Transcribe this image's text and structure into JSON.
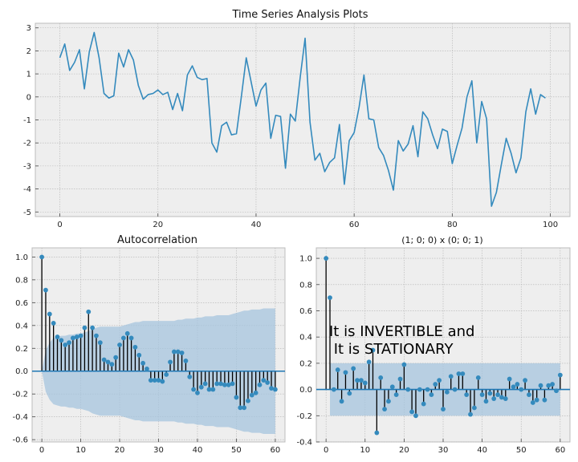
{
  "figure_title": "",
  "chart_data": [
    {
      "type": "line",
      "title": "Time Series Analysis Plots",
      "xlim": [
        -5,
        104
      ],
      "ylim": [
        -5.2,
        3.2
      ],
      "xticks": [
        0,
        20,
        40,
        60,
        80,
        100
      ],
      "yticks": [
        -5,
        -4,
        -3,
        -2,
        -1,
        0,
        1,
        2,
        3
      ],
      "grid": true,
      "color": "#348ABD",
      "series": [
        {
          "values": [
            1.7,
            2.3,
            1.15,
            1.5,
            2.05,
            0.35,
            1.95,
            2.8,
            1.7,
            0.15,
            -0.05,
            0.05,
            1.9,
            1.3,
            2.05,
            1.6,
            0.5,
            -0.1,
            0.1,
            0.15,
            0.3,
            0.1,
            0.2,
            -0.55,
            0.15,
            -0.6,
            0.95,
            1.35,
            0.85,
            0.75,
            0.8,
            -2.0,
            -2.4,
            -1.25,
            -1.1,
            -1.65,
            -1.6,
            0.0,
            1.7,
            0.65,
            -0.4,
            0.3,
            0.6,
            -1.8,
            -0.8,
            -0.85,
            -3.1,
            -0.75,
            -1.05,
            0.85,
            2.55,
            -1.1,
            -2.75,
            -2.45,
            -3.25,
            -2.85,
            -2.65,
            -1.2,
            -3.8,
            -1.9,
            -1.55,
            -0.45,
            0.95,
            -0.95,
            -1.0,
            -2.2,
            -2.55,
            -3.2,
            -4.05,
            -1.9,
            -2.35,
            -2.05,
            -1.25,
            -2.6,
            -0.65,
            -0.95,
            -1.65,
            -2.25,
            -1.4,
            -1.5,
            -2.9,
            -2.1,
            -1.35,
            0.0,
            0.7,
            -2.0,
            -0.2,
            -0.95,
            -4.75,
            -4.15,
            -2.95,
            -1.8,
            -2.45,
            -3.3,
            -2.65,
            -0.65,
            0.35,
            -0.75,
            0.1,
            -0.05
          ]
        }
      ]
    },
    {
      "type": "stem",
      "title": "Autocorrelation",
      "xlim": [
        -2.5,
        62.5
      ],
      "ylim": [
        -0.62,
        1.08
      ],
      "xticks": [
        0,
        10,
        20,
        30,
        40,
        50,
        60
      ],
      "yticks": [
        -0.6,
        -0.4,
        -0.2,
        0.0,
        0.2,
        0.4,
        0.6,
        0.8,
        1.0
      ],
      "grid": true,
      "marker_color": "#348ABD",
      "zero_line_color": "#1f77b4",
      "confidence_band": {
        "color": "#a6c4dd",
        "upper": [
          0.0,
          0.18,
          0.25,
          0.29,
          0.3,
          0.31,
          0.31,
          0.32,
          0.32,
          0.33,
          0.33,
          0.34,
          0.35,
          0.37,
          0.38,
          0.39,
          0.39,
          0.39,
          0.39,
          0.39,
          0.39,
          0.4,
          0.41,
          0.42,
          0.43,
          0.43,
          0.44,
          0.44,
          0.44,
          0.44,
          0.44,
          0.44,
          0.44,
          0.44,
          0.44,
          0.45,
          0.45,
          0.46,
          0.46,
          0.46,
          0.47,
          0.47,
          0.48,
          0.48,
          0.48,
          0.49,
          0.49,
          0.49,
          0.49,
          0.5,
          0.51,
          0.52,
          0.53,
          0.53,
          0.54,
          0.54,
          0.54,
          0.55,
          0.55,
          0.55,
          0.55
        ],
        "lower": [
          0.0,
          -0.18,
          -0.25,
          -0.29,
          -0.3,
          -0.31,
          -0.31,
          -0.32,
          -0.32,
          -0.33,
          -0.33,
          -0.34,
          -0.35,
          -0.37,
          -0.38,
          -0.39,
          -0.39,
          -0.39,
          -0.39,
          -0.39,
          -0.39,
          -0.4,
          -0.41,
          -0.42,
          -0.43,
          -0.43,
          -0.44,
          -0.44,
          -0.44,
          -0.44,
          -0.44,
          -0.44,
          -0.44,
          -0.44,
          -0.44,
          -0.45,
          -0.45,
          -0.46,
          -0.46,
          -0.46,
          -0.47,
          -0.47,
          -0.48,
          -0.48,
          -0.48,
          -0.49,
          -0.49,
          -0.49,
          -0.49,
          -0.5,
          -0.51,
          -0.52,
          -0.53,
          -0.53,
          -0.54,
          -0.54,
          -0.54,
          -0.55,
          -0.55,
          -0.55,
          -0.55
        ]
      },
      "values": [
        1.0,
        0.71,
        0.5,
        0.42,
        0.3,
        0.27,
        0.23,
        0.25,
        0.29,
        0.3,
        0.31,
        0.38,
        0.52,
        0.38,
        0.31,
        0.25,
        0.1,
        0.08,
        0.06,
        0.12,
        0.23,
        0.29,
        0.33,
        0.29,
        0.21,
        0.14,
        0.07,
        0.02,
        -0.08,
        -0.08,
        -0.08,
        -0.09,
        -0.03,
        0.08,
        0.17,
        0.17,
        0.16,
        0.09,
        -0.05,
        -0.16,
        -0.19,
        -0.14,
        -0.11,
        -0.16,
        -0.16,
        -0.11,
        -0.11,
        -0.12,
        -0.12,
        -0.11,
        -0.23,
        -0.32,
        -0.32,
        -0.26,
        -0.21,
        -0.19,
        -0.12,
        -0.08,
        -0.1,
        -0.15,
        -0.16
      ]
    },
    {
      "type": "stem",
      "title": "(1; 0; 0) x (0; 0; 1)",
      "xlim": [
        -2.5,
        62.5
      ],
      "ylim": [
        -0.4,
        1.08
      ],
      "xticks": [
        0,
        10,
        20,
        30,
        40,
        50,
        60
      ],
      "yticks": [
        -0.4,
        -0.2,
        0.0,
        0.2,
        0.4,
        0.6,
        0.8,
        1.0
      ],
      "grid": true,
      "marker_color": "#348ABD",
      "zero_line_color": "#1f77b4",
      "confidence_band": {
        "color": "#a6c4dd",
        "upper": 0.2,
        "lower": -0.2,
        "x_start": 1,
        "x_end": 60
      },
      "values": [
        1.0,
        0.7,
        0.0,
        0.15,
        -0.09,
        0.13,
        -0.03,
        0.16,
        0.07,
        0.07,
        0.05,
        0.21,
        0.3,
        -0.33,
        0.09,
        -0.15,
        -0.09,
        0.02,
        -0.04,
        0.08,
        0.19,
        0.0,
        -0.17,
        -0.2,
        0.0,
        -0.11,
        0.0,
        -0.04,
        0.04,
        0.07,
        -0.15,
        -0.02,
        0.1,
        0.0,
        0.12,
        0.12,
        -0.04,
        -0.19,
        -0.14,
        0.09,
        -0.04,
        -0.09,
        -0.03,
        -0.07,
        -0.04,
        -0.06,
        -0.07,
        0.08,
        0.02,
        0.04,
        0.0,
        0.07,
        -0.04,
        -0.1,
        -0.08,
        0.03,
        -0.08,
        0.03,
        0.04,
        -0.01,
        0.11
      ],
      "annotation": [
        "It is INVERTIBLE and",
        " It is STATIONARY"
      ]
    }
  ]
}
